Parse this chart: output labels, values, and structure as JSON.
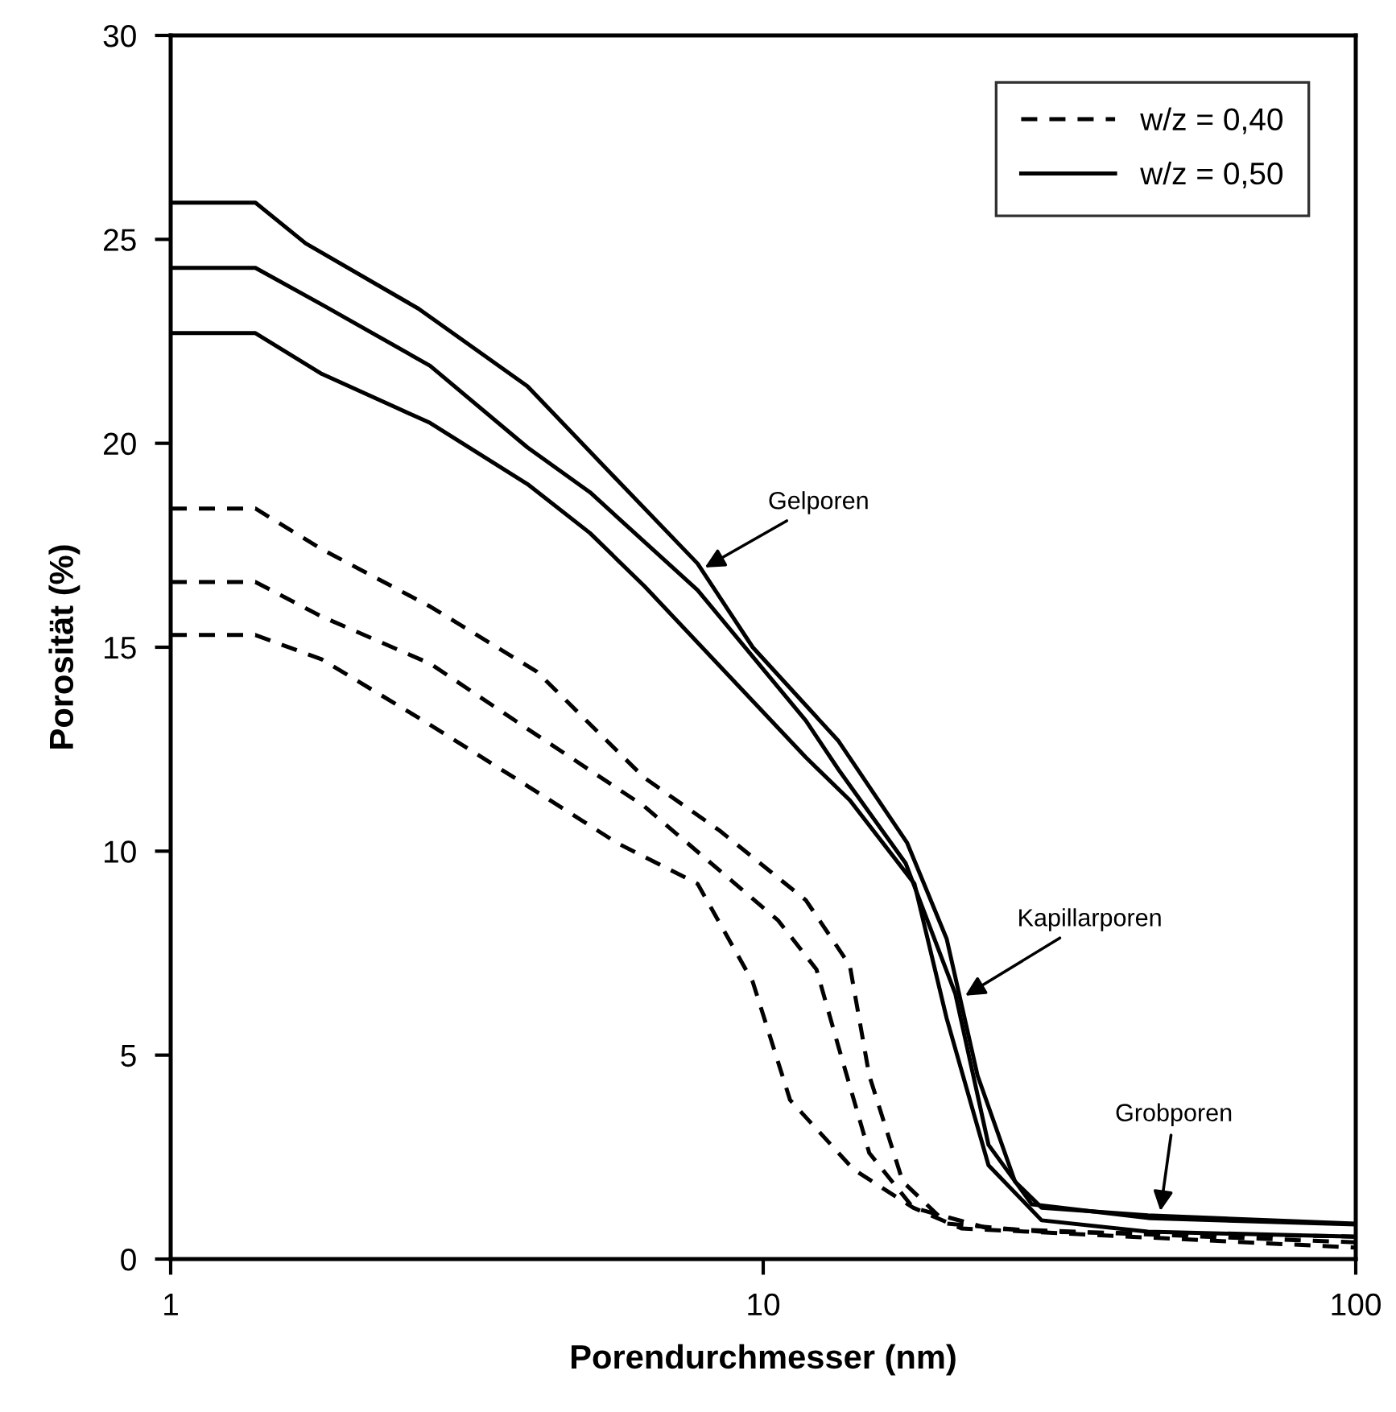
{
  "chart_data": {
    "type": "line",
    "xlabel": "Porendurchmesser (nm)",
    "ylabel": "Porosität (%)",
    "log": "x",
    "xlim": [
      1,
      100
    ],
    "xticks": [
      1,
      10,
      100
    ],
    "ylim": [
      0,
      30
    ],
    "yticks": [
      0,
      5,
      10,
      15,
      20,
      25,
      30
    ],
    "grid": false,
    "legend": "top right",
    "marker": "none",
    "series": [
      {
        "name": "w/z = 0,40",
        "color": "#000000",
        "line_style": "dashed",
        "x": [
          1,
          1.39,
          1.8,
          2.74,
          4.15,
          6.3,
          8.45,
          11.8,
          14.0,
          15.1,
          17.2,
          20.4,
          29.5,
          100
        ],
        "values": [
          18.4,
          18.4,
          17.4,
          16.0,
          14.4,
          11.8,
          10.5,
          8.8,
          7.2,
          4.5,
          1.9,
          0.87,
          0.67,
          0.55
        ]
      },
      {
        "color": "#000000",
        "line_style": "dashed",
        "x": [
          1,
          1.39,
          1.8,
          2.74,
          4.0,
          6.3,
          10.6,
          12.3,
          13.4,
          15.1,
          17.9,
          24,
          100
        ],
        "values": [
          16.6,
          16.6,
          15.75,
          14.6,
          13.0,
          11.1,
          8.3,
          7.1,
          5.2,
          2.6,
          1.26,
          0.75,
          0.41
        ]
      },
      {
        "color": "#000000",
        "line_style": "dashed",
        "x": [
          1,
          1.39,
          1.8,
          2.74,
          4.0,
          5.67,
          7.75,
          9.6,
          11.1,
          14.2,
          17.9,
          21.6,
          100
        ],
        "values": [
          15.3,
          15.3,
          14.7,
          13.1,
          11.6,
          10.2,
          9.2,
          6.8,
          3.9,
          2.2,
          1.26,
          0.75,
          0.28
        ]
      },
      {
        "name": "w/z = 0,50",
        "color": "#000000",
        "line_style": "solid",
        "x": [
          1,
          1.39,
          1.69,
          2.62,
          4.0,
          5.67,
          7.75,
          9.6,
          13.4,
          17.5,
          20.4,
          23.0,
          26.6,
          29.5,
          44.6,
          100
        ],
        "values": [
          25.9,
          25.9,
          24.9,
          23.3,
          21.4,
          19.1,
          17.05,
          15.0,
          12.7,
          10.2,
          7.85,
          4.5,
          1.9,
          1.26,
          1.07,
          0.87
        ]
      },
      {
        "color": "#000000",
        "line_style": "solid",
        "x": [
          1,
          1.39,
          1.8,
          2.74,
          4.0,
          5.1,
          7.75,
          11.8,
          13.4,
          17.4,
          21.1,
          24.0,
          28.4,
          45,
          100
        ],
        "values": [
          24.3,
          24.3,
          23.4,
          21.9,
          19.9,
          18.8,
          16.4,
          13.2,
          12.0,
          9.7,
          6.5,
          2.8,
          1.34,
          1.0,
          0.85
        ]
      },
      {
        "color": "#000000",
        "line_style": "solid",
        "x": [
          1,
          1.39,
          1.8,
          2.74,
          4.0,
          5.1,
          6.3,
          11.8,
          14.0,
          18.0,
          20.4,
          24,
          29.5,
          44.6,
          100
        ],
        "values": [
          22.7,
          22.7,
          21.7,
          20.5,
          19.0,
          17.8,
          16.5,
          12.3,
          11.25,
          9.2,
          5.9,
          2.3,
          0.95,
          0.67,
          0.55
        ]
      }
    ],
    "annotations": [
      {
        "text": "Gelporen",
        "x": 7.85,
        "y": 16.9
      },
      {
        "text": "Kapillarporen",
        "x": 21.6,
        "y": 6.4
      },
      {
        "text": "Grobporen",
        "x": 46.7,
        "y": 1.07
      }
    ]
  }
}
